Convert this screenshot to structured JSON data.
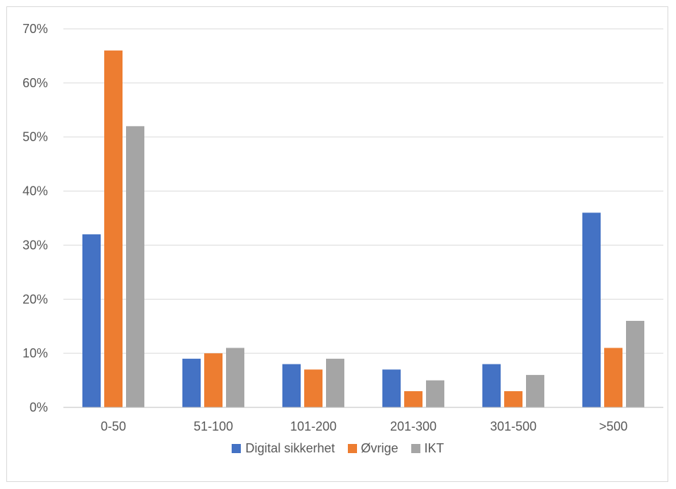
{
  "chart_data": {
    "type": "bar",
    "categories": [
      "0-50",
      "51-100",
      "101-200",
      "201-300",
      "301-500",
      ">500"
    ],
    "series": [
      {
        "name": "Digital sikkerhet",
        "color": "#4472c4",
        "values": [
          32,
          9,
          8,
          7,
          8,
          36
        ]
      },
      {
        "name": "Øvrige",
        "color": "#ed7d31",
        "values": [
          66,
          10,
          7,
          3,
          3,
          11
        ]
      },
      {
        "name": "IKT",
        "color": "#a5a5a5",
        "values": [
          52,
          11,
          9,
          5,
          6,
          16
        ]
      }
    ],
    "ylim": [
      0,
      70
    ],
    "yticks": [
      "0%",
      "10%",
      "20%",
      "30%",
      "40%",
      "50%",
      "60%",
      "70%"
    ],
    "grid": true,
    "legend_position": "bottom"
  }
}
